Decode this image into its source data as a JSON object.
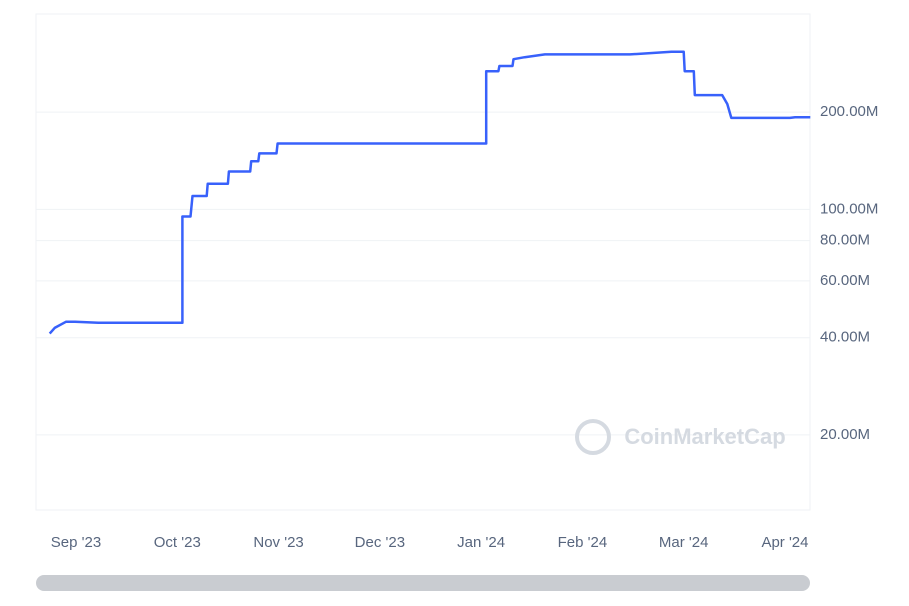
{
  "chart_data": {
    "type": "line",
    "watermark": "CoinMarketCap",
    "log_scale": true,
    "grid": true,
    "xlim": [
      -0.395,
      7.247
    ],
    "xticks": [
      {
        "value": 0,
        "label": "Sep '23"
      },
      {
        "value": 1,
        "label": "Oct '23"
      },
      {
        "value": 2,
        "label": "Nov '23"
      },
      {
        "value": 3,
        "label": "Dec '23"
      },
      {
        "value": 4,
        "label": "Jan '24"
      },
      {
        "value": 5,
        "label": "Feb '24"
      },
      {
        "value": 6,
        "label": "Mar '24"
      },
      {
        "value": 7,
        "label": "Apr '24"
      }
    ],
    "ylim": [
      11700000,
      403000000
    ],
    "yticks": [
      {
        "value": 20000000,
        "label": "20.00M"
      },
      {
        "value": 40000000,
        "label": "40.00M"
      },
      {
        "value": 60000000,
        "label": "60.00M"
      },
      {
        "value": 80000000,
        "label": "80.00M"
      },
      {
        "value": 100000000,
        "label": "100.00M"
      },
      {
        "value": 200000000,
        "label": "200.00M"
      }
    ],
    "x": [
      -0.26,
      -0.21,
      -0.1,
      -0.01,
      0.22,
      1.05,
      1.05,
      1.13,
      1.15,
      1.29,
      1.3,
      1.5,
      1.51,
      1.72,
      1.73,
      1.8,
      1.81,
      1.98,
      1.99,
      4.05,
      4.05,
      4.17,
      4.18,
      4.31,
      4.32,
      4.43,
      4.63,
      5.47,
      5.88,
      6.0,
      6.01,
      6.1,
      6.11,
      6.38,
      6.43,
      6.47,
      7.05,
      7.1,
      7.25
    ],
    "series": [
      {
        "color": "#3861fb",
        "values": [
          41200000,
          42900000,
          44800000,
          44800000,
          44500000,
          44500000,
          95000000,
          95000000,
          110000000,
          110000000,
          120000000,
          120000000,
          131000000,
          131000000,
          141000000,
          141000000,
          149000000,
          149000000,
          160000000,
          160000000,
          268000000,
          268000000,
          278000000,
          278000000,
          292000000,
          296000000,
          302000000,
          302000000,
          308000000,
          308000000,
          268000000,
          268000000,
          226000000,
          226000000,
          212000000,
          192000000,
          192000000,
          193000000,
          193000000
        ]
      }
    ]
  }
}
